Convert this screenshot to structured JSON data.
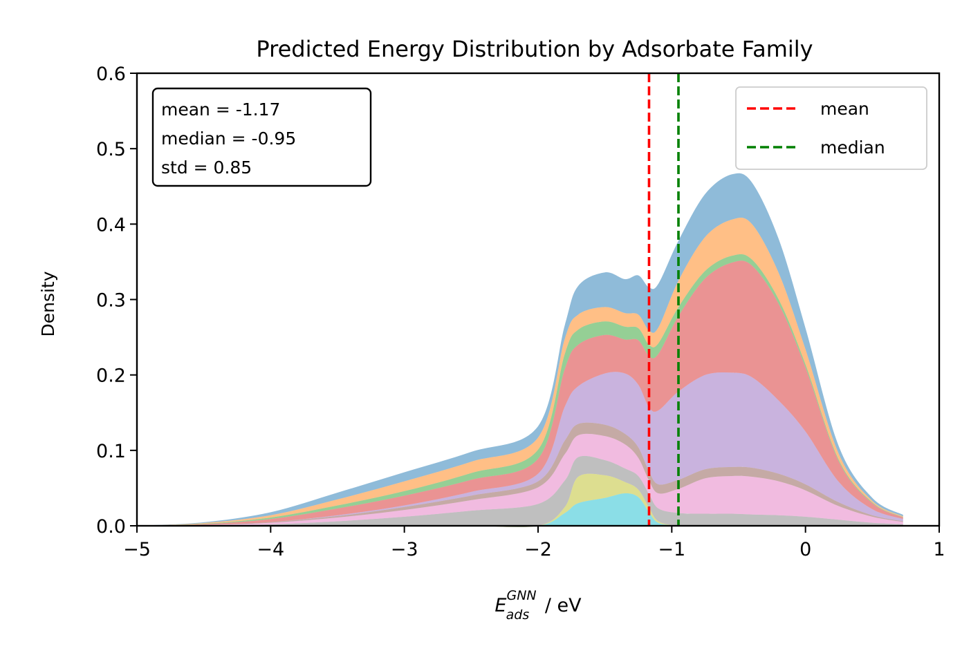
{
  "chart_data": {
    "type": "area",
    "stacked": true,
    "title": "Predicted Energy Distribution by Adsorbate Family",
    "xlabel": {
      "main": "E",
      "sup": "GNN",
      "sub": "ads",
      "unit": " / eV"
    },
    "ylabel": "Density",
    "xlim": [
      -5,
      1
    ],
    "ylim": [
      0,
      0.6
    ],
    "xticks": [
      -5,
      -4,
      -3,
      -2,
      -1,
      0,
      1
    ],
    "xtick_labels": [
      "−5",
      "−4",
      "−3",
      "−2",
      "−1",
      "0",
      "1"
    ],
    "yticks": [
      0.0,
      0.1,
      0.2,
      0.3,
      0.4,
      0.5,
      0.6
    ],
    "ytick_labels": [
      "0.0",
      "0.1",
      "0.2",
      "0.3",
      "0.4",
      "0.5",
      "0.6"
    ],
    "grid": false,
    "x": [
      -5.0,
      -4.5,
      -4.0,
      -3.5,
      -3.0,
      -2.5,
      -2.0,
      -1.8,
      -1.7,
      -1.5,
      -1.35,
      -1.25,
      -1.17,
      -1.1,
      -0.95,
      -0.75,
      -0.55,
      -0.4,
      -0.2,
      0.0,
      0.25,
      0.5,
      0.73
    ],
    "layers": [
      {
        "color": "#17becf",
        "values": [
          0,
          0,
          0,
          0,
          0,
          0,
          0,
          0.017,
          0.03,
          0.037,
          0.043,
          0.038,
          0.018,
          0.004,
          0,
          0,
          0,
          0,
          0,
          0,
          0,
          0,
          0
        ]
      },
      {
        "color": "#bcbd22",
        "values": [
          0,
          0,
          0,
          0,
          0,
          0,
          0,
          0.008,
          0.035,
          0.03,
          0.015,
          0.01,
          0.006,
          0.002,
          0,
          0,
          0,
          0,
          0,
          0,
          0,
          0,
          0
        ]
      },
      {
        "color": "#7f7f7f",
        "values": [
          0,
          0.0005,
          0.002,
          0.006,
          0.012,
          0.02,
          0.029,
          0.035,
          0.026,
          0.02,
          0.018,
          0.018,
          0.018,
          0.017,
          0.017,
          0.016,
          0.016,
          0.015,
          0.014,
          0.012,
          0.008,
          0.004,
          0.002
        ]
      },
      {
        "color": "#e377c2",
        "values": [
          0,
          0.0005,
          0.002,
          0.005,
          0.009,
          0.014,
          0.022,
          0.035,
          0.029,
          0.032,
          0.032,
          0.024,
          0.018,
          0.02,
          0.032,
          0.047,
          0.05,
          0.05,
          0.045,
          0.035,
          0.018,
          0.008,
          0.003
        ]
      },
      {
        "color": "#8c564b",
        "values": [
          0,
          0.0002,
          0.001,
          0.002,
          0.004,
          0.006,
          0.008,
          0.018,
          0.015,
          0.015,
          0.014,
          0.014,
          0.012,
          0.012,
          0.012,
          0.012,
          0.012,
          0.012,
          0.01,
          0.008,
          0.005,
          0.002,
          0.001
        ]
      },
      {
        "color": "#9467bd",
        "values": [
          0,
          0,
          0,
          0.001,
          0.002,
          0.005,
          0.01,
          0.045,
          0.05,
          0.068,
          0.08,
          0.083,
          0.085,
          0.098,
          0.117,
          0.125,
          0.125,
          0.12,
          0.097,
          0.07,
          0.027,
          0.008,
          0.003
        ]
      },
      {
        "color": "#d62728",
        "values": [
          0,
          0.001,
          0.004,
          0.009,
          0.013,
          0.016,
          0.02,
          0.05,
          0.055,
          0.051,
          0.045,
          0.059,
          0.068,
          0.075,
          0.1,
          0.128,
          0.146,
          0.148,
          0.128,
          0.085,
          0.027,
          0.008,
          0.002
        ]
      },
      {
        "color": "#2ca02c",
        "values": [
          0,
          0.0005,
          0.002,
          0.004,
          0.006,
          0.009,
          0.012,
          0.02,
          0.02,
          0.018,
          0.017,
          0.016,
          0.015,
          0.014,
          0.012,
          0.01,
          0.009,
          0.008,
          0.006,
          0.004,
          0.002,
          0.001,
          0.0005
        ]
      },
      {
        "color": "#ff7f0e",
        "values": [
          0,
          0.001,
          0.003,
          0.008,
          0.013,
          0.015,
          0.016,
          0.02,
          0.02,
          0.019,
          0.018,
          0.018,
          0.019,
          0.021,
          0.035,
          0.045,
          0.048,
          0.047,
          0.035,
          0.02,
          0.008,
          0.002,
          0.001
        ]
      },
      {
        "color": "#1f77b4",
        "values": [
          0,
          0.001,
          0.004,
          0.009,
          0.012,
          0.013,
          0.015,
          0.018,
          0.038,
          0.046,
          0.045,
          0.052,
          0.057,
          0.058,
          0.053,
          0.057,
          0.06,
          0.055,
          0.045,
          0.028,
          0.01,
          0.004,
          0.002
        ]
      }
    ],
    "mean": -1.17,
    "median": -0.95,
    "lines": [
      {
        "name": "mean",
        "x": -1.17,
        "color": "#ff0000"
      },
      {
        "name": "median",
        "x": -0.95,
        "color": "#008000"
      }
    ],
    "stats_text": [
      "mean = -1.17",
      "median = -0.95",
      "std = 0.85"
    ],
    "legend": {
      "placement": "upper right"
    },
    "stats_box": {
      "placement": "upper left"
    }
  }
}
